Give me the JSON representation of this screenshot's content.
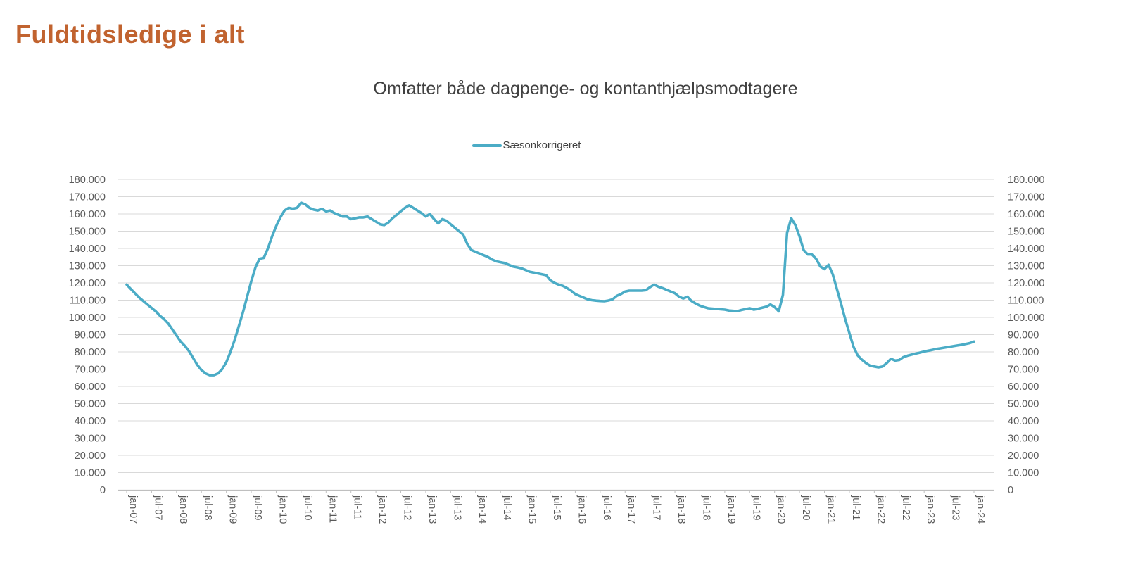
{
  "header": {
    "title": "Fuldtidsledige i alt",
    "title_color": "#C1632F"
  },
  "chart": {
    "subtitle": "Omfatter både dagpenge- og kontanthjælpsmodtagere",
    "legend": {
      "label": "Sæsonkorrigeret",
      "line_color": "#4BACC6"
    },
    "axis_label_color": "#595959",
    "gridline_color": "#D9D9D9",
    "axis_line_color": "#BFBFBF"
  },
  "chart_data": {
    "type": "line",
    "title": "Omfatter både dagpenge- og kontanthjælpsmodtagere",
    "x_interval": "monthly",
    "x_start": "jan-07",
    "x_end": "jan-24",
    "ylim": [
      0,
      180000
    ],
    "y_step": 10000,
    "grid": true,
    "legend_position": "top",
    "y_tick_labels": [
      "180.000",
      "170.000",
      "160.000",
      "150.000",
      "140.000",
      "130.000",
      "120.000",
      "110.000",
      "100.000",
      "90.000",
      "80.000",
      "70.000",
      "60.000",
      "50.000",
      "40.000",
      "30.000",
      "20.000",
      "10.000",
      "0"
    ],
    "x_tick_labels": [
      "jan-07",
      "jul-07",
      "jan-08",
      "jul-08",
      "jan-09",
      "jul-09",
      "jan-10",
      "jul-10",
      "jan-11",
      "jul-11",
      "jan-12",
      "jul-12",
      "jan-13",
      "jul-13",
      "jan-14",
      "jul-14",
      "jan-15",
      "jul-15",
      "jan-16",
      "jul-16",
      "jan-17",
      "jul-17",
      "jan-18",
      "jul-18",
      "jan-19",
      "jul-19",
      "jan-20",
      "jul-20",
      "jan-21",
      "jul-21",
      "jan-22",
      "jul-22",
      "jan-23",
      "jul-23",
      "jan-24"
    ],
    "series": [
      {
        "name": "Sæsonkorrigeret",
        "color": "#4BACC6",
        "values": [
          119000,
          116500,
          114000,
          111500,
          109500,
          107500,
          105500,
          103500,
          101000,
          99000,
          96500,
          93000,
          89500,
          86000,
          83500,
          80500,
          76500,
          72500,
          69500,
          67500,
          66500,
          66500,
          67500,
          70000,
          74000,
          80000,
          87000,
          95000,
          103000,
          112000,
          121000,
          129000,
          134000,
          134500,
          140000,
          147000,
          153000,
          158000,
          162000,
          163500,
          163000,
          163500,
          166500,
          165500,
          163500,
          162500,
          162000,
          163000,
          161500,
          162000,
          160500,
          159500,
          158500,
          158500,
          157000,
          157500,
          158000,
          158000,
          158500,
          157000,
          155500,
          154000,
          153500,
          155000,
          157500,
          159500,
          161500,
          163500,
          165000,
          163500,
          162000,
          160500,
          158500,
          160000,
          157000,
          154500,
          157000,
          156000,
          154000,
          152000,
          150000,
          148000,
          142500,
          139000,
          138000,
          137000,
          136000,
          135000,
          133500,
          132500,
          132000,
          131500,
          130500,
          129500,
          129000,
          128500,
          127500,
          126500,
          126000,
          125500,
          125000,
          124500,
          121500,
          120000,
          119000,
          118300,
          117000,
          115500,
          113500,
          112500,
          111500,
          110500,
          110000,
          109700,
          109500,
          109400,
          109800,
          110500,
          112500,
          113500,
          115000,
          115500,
          115500,
          115500,
          115500,
          115800,
          117500,
          119000,
          117800,
          117000,
          116000,
          115000,
          114000,
          112000,
          111000,
          112000,
          109500,
          108000,
          106800,
          106000,
          105300,
          105100,
          104900,
          104700,
          104500,
          104000,
          103800,
          103600,
          104300,
          104800,
          105300,
          104500,
          105000,
          105600,
          106200,
          107500,
          106000,
          103500,
          113000,
          149000,
          157500,
          153500,
          147000,
          139000,
          136500,
          136500,
          134000,
          129500,
          128000,
          130500,
          125000,
          116500,
          108000,
          99000,
          91000,
          83000,
          78000,
          75500,
          73500,
          72000,
          71500,
          71000,
          71500,
          73500,
          76000,
          75000,
          75300,
          77000,
          77800,
          78400,
          79000,
          79600,
          80200,
          80700,
          81200,
          81700,
          82100,
          82500,
          82900,
          83300,
          83700,
          84100,
          84600,
          85100,
          86000
        ]
      }
    ]
  }
}
